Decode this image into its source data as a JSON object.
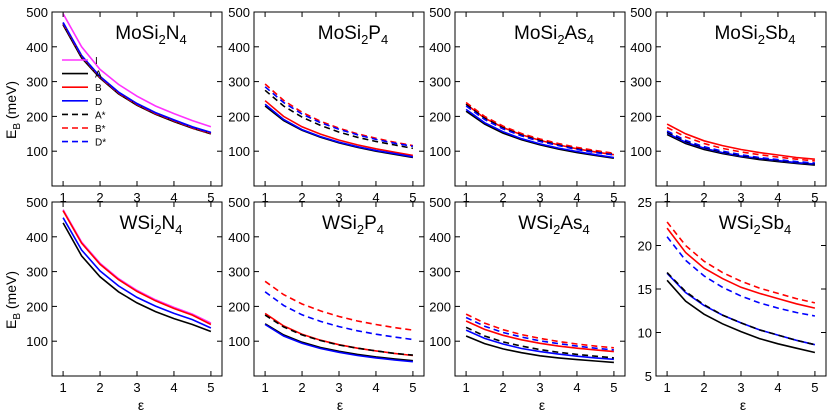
{
  "figure": {
    "xlabel": "ε",
    "ylabel_main": "E",
    "ylabel_sub": "B",
    "ylabel_unit": " (meV)"
  },
  "chart_data": [
    {
      "type": "line",
      "formula": [
        "MoSi",
        "2",
        "N",
        "4"
      ],
      "xlim": [
        0.7,
        5.3
      ],
      "ylim": [
        0,
        500
      ],
      "yticks": [
        100,
        200,
        300,
        400,
        500
      ],
      "xticks": [
        1,
        2,
        3,
        4,
        5
      ],
      "x": [
        1,
        1.5,
        2,
        2.5,
        3,
        3.5,
        4,
        4.5,
        5
      ],
      "series": [
        {
          "name": "I",
          "color": "#ff33ff",
          "dash": false,
          "values": [
            495,
            400,
            335,
            292,
            258,
            230,
            208,
            188,
            170
          ]
        },
        {
          "name": "A",
          "color": "#000000",
          "dash": false,
          "values": [
            463,
            368,
            310,
            265,
            232,
            206,
            185,
            166,
            150
          ]
        },
        {
          "name": "B",
          "color": "#ff0000",
          "dash": false,
          "values": [
            468,
            373,
            313,
            268,
            235,
            209,
            188,
            168,
            152
          ]
        },
        {
          "name": "D",
          "color": "#0000ff",
          "dash": false,
          "values": [
            470,
            375,
            315,
            270,
            237,
            211,
            190,
            170,
            154
          ]
        },
        {
          "name": "A*",
          "color": "#000000",
          "dash": true,
          "values": [
            464,
            369,
            311,
            266,
            233,
            207,
            186,
            167,
            151
          ]
        },
        {
          "name": "B*",
          "color": "#ff0000",
          "dash": true,
          "values": [
            467,
            372,
            312,
            267,
            234,
            208,
            187,
            167,
            151
          ]
        },
        {
          "name": "D*",
          "color": "#0000ff",
          "dash": true,
          "values": [
            469,
            374,
            314,
            269,
            236,
            210,
            189,
            169,
            153
          ]
        }
      ]
    },
    {
      "type": "line",
      "formula": [
        "MoSi",
        "2",
        "P",
        "4"
      ],
      "xlim": [
        0.7,
        5.3
      ],
      "ylim": [
        0,
        500
      ],
      "yticks": [
        100,
        200,
        300,
        400,
        500
      ],
      "xticks": [
        1,
        2,
        3,
        4,
        5
      ],
      "x": [
        1,
        1.5,
        2,
        2.5,
        3,
        3.5,
        4,
        4.5,
        5
      ],
      "series": [
        {
          "name": "A",
          "color": "#000000",
          "dash": false,
          "values": [
            230,
            188,
            160,
            140,
            124,
            111,
            100,
            91,
            82
          ]
        },
        {
          "name": "B",
          "color": "#ff0000",
          "dash": false,
          "values": [
            245,
            200,
            170,
            149,
            132,
            118,
            107,
            97,
            88
          ]
        },
        {
          "name": "D",
          "color": "#0000ff",
          "dash": false,
          "values": [
            235,
            191,
            162,
            142,
            126,
            113,
            102,
            93,
            84
          ]
        },
        {
          "name": "A*",
          "color": "#000000",
          "dash": true,
          "values": [
            275,
            230,
            198,
            174,
            155,
            140,
            128,
            118,
            108
          ]
        },
        {
          "name": "B*",
          "color": "#ff0000",
          "dash": true,
          "values": [
            293,
            246,
            212,
            186,
            166,
            150,
            137,
            126,
            116
          ]
        },
        {
          "name": "D*",
          "color": "#0000ff",
          "dash": true,
          "values": [
            285,
            240,
            207,
            182,
            163,
            147,
            134,
            123,
            114
          ]
        }
      ]
    },
    {
      "type": "line",
      "formula": [
        "MoSi",
        "2",
        "As",
        "4"
      ],
      "xlim": [
        0.7,
        5.3
      ],
      "ylim": [
        0,
        500
      ],
      "yticks": [
        100,
        200,
        300,
        400,
        500
      ],
      "xticks": [
        1,
        2,
        3,
        4,
        5
      ],
      "x": [
        1,
        1.5,
        2,
        2.5,
        3,
        3.5,
        4,
        4.5,
        5
      ],
      "series": [
        {
          "name": "A",
          "color": "#000000",
          "dash": false,
          "values": [
            215,
            178,
            152,
            133,
            118,
            106,
            96,
            88,
            80
          ]
        },
        {
          "name": "B",
          "color": "#ff0000",
          "dash": false,
          "values": [
            235,
            195,
            168,
            147,
            131,
            118,
            107,
            98,
            90
          ]
        },
        {
          "name": "D",
          "color": "#0000ff",
          "dash": false,
          "values": [
            220,
            182,
            156,
            136,
            121,
            109,
            99,
            90,
            82
          ]
        },
        {
          "name": "A*",
          "color": "#000000",
          "dash": true,
          "values": [
            235,
            196,
            169,
            148,
            132,
            119,
            109,
            100,
            92
          ]
        },
        {
          "name": "B*",
          "color": "#ff0000",
          "dash": true,
          "values": [
            240,
            200,
            172,
            151,
            135,
            122,
            111,
            102,
            94
          ]
        },
        {
          "name": "D*",
          "color": "#0000ff",
          "dash": true,
          "values": [
            230,
            191,
            164,
            144,
            128,
            116,
            105,
            96,
            89
          ]
        }
      ]
    },
    {
      "type": "line",
      "formula": [
        "MoSi",
        "2",
        "Sb",
        "4"
      ],
      "xlim": [
        0.7,
        5.3
      ],
      "ylim": [
        0,
        500
      ],
      "yticks": [
        100,
        200,
        300,
        400,
        500
      ],
      "xticks": [
        1,
        2,
        3,
        4,
        5
      ],
      "x": [
        1,
        1.5,
        2,
        2.5,
        3,
        3.5,
        4,
        4.5,
        5
      ],
      "series": [
        {
          "name": "A",
          "color": "#000000",
          "dash": false,
          "values": [
            148,
            122,
            105,
            93,
            84,
            76,
            70,
            65,
            60
          ]
        },
        {
          "name": "B",
          "color": "#ff0000",
          "dash": false,
          "values": [
            178,
            150,
            130,
            116,
            105,
            96,
            89,
            82,
            77
          ]
        },
        {
          "name": "D",
          "color": "#0000ff",
          "dash": false,
          "values": [
            152,
            126,
            109,
            96,
            86,
            79,
            73,
            67,
            63
          ]
        },
        {
          "name": "A*",
          "color": "#000000",
          "dash": true,
          "values": [
            155,
            128,
            111,
            98,
            88,
            80,
            74,
            69,
            64
          ]
        },
        {
          "name": "B*",
          "color": "#ff0000",
          "dash": true,
          "values": [
            168,
            141,
            122,
            108,
            98,
            90,
            83,
            77,
            72
          ]
        },
        {
          "name": "D*",
          "color": "#0000ff",
          "dash": true,
          "values": [
            158,
            131,
            113,
            100,
            90,
            82,
            76,
            70,
            66
          ]
        }
      ]
    },
    {
      "type": "line",
      "formula": [
        "WSi",
        "2",
        "N",
        "4"
      ],
      "xlim": [
        0.7,
        5.3
      ],
      "ylim": [
        0,
        500
      ],
      "yticks": [
        100,
        200,
        300,
        400,
        500
      ],
      "xticks": [
        1,
        2,
        3,
        4,
        5
      ],
      "x": [
        1,
        1.5,
        2,
        2.5,
        3,
        3.5,
        4,
        4.5,
        5
      ],
      "series": [
        {
          "name": "I",
          "color": "#ff33ff",
          "dash": false,
          "values": [
            478,
            385,
            324,
            280,
            246,
            219,
            197,
            178,
            152
          ]
        },
        {
          "name": "A",
          "color": "#000000",
          "dash": false,
          "values": [
            440,
            345,
            285,
            242,
            210,
            185,
            165,
            148,
            128
          ]
        },
        {
          "name": "B",
          "color": "#ff0000",
          "dash": false,
          "values": [
            475,
            382,
            321,
            277,
            243,
            216,
            194,
            175,
            148
          ]
        },
        {
          "name": "D",
          "color": "#0000ff",
          "dash": false,
          "values": [
            455,
            362,
            302,
            259,
            226,
            201,
            180,
            162,
            138
          ]
        }
      ]
    },
    {
      "type": "line",
      "formula": [
        "WSi",
        "2",
        "P",
        "4"
      ],
      "xlim": [
        0.7,
        5.3
      ],
      "ylim": [
        0,
        500
      ],
      "yticks": [
        100,
        200,
        300,
        400,
        500
      ],
      "xticks": [
        1,
        2,
        3,
        4,
        5
      ],
      "x": [
        1,
        1.5,
        2,
        2.5,
        3,
        3.5,
        4,
        4.5,
        5
      ],
      "series": [
        {
          "name": "A",
          "color": "#000000",
          "dash": false,
          "values": [
            150,
            118,
            97,
            82,
            71,
            62,
            55,
            49,
            44
          ]
        },
        {
          "name": "B",
          "color": "#ff0000",
          "dash": false,
          "values": [
            180,
            144,
            120,
            103,
            90,
            80,
            72,
            65,
            59
          ]
        },
        {
          "name": "D",
          "color": "#0000ff",
          "dash": false,
          "values": [
            148,
            115,
            94,
            79,
            68,
            59,
            52,
            46,
            41
          ]
        },
        {
          "name": "A*",
          "color": "#000000",
          "dash": true,
          "values": [
            175,
            141,
            118,
            102,
            89,
            80,
            72,
            65,
            60
          ]
        },
        {
          "name": "B*",
          "color": "#ff0000",
          "dash": true,
          "values": [
            272,
            234,
            207,
            187,
            171,
            158,
            148,
            139,
            132
          ]
        },
        {
          "name": "D*",
          "color": "#0000ff",
          "dash": true,
          "values": [
            242,
            203,
            176,
            157,
            142,
            130,
            120,
            112,
            105
          ]
        }
      ]
    },
    {
      "type": "line",
      "formula": [
        "WSi",
        "2",
        "As",
        "4"
      ],
      "xlim": [
        0.7,
        5.3
      ],
      "ylim": [
        0,
        500
      ],
      "yticks": [
        100,
        200,
        300,
        400,
        500
      ],
      "xticks": [
        1,
        2,
        3,
        4,
        5
      ],
      "x": [
        1,
        1.5,
        2,
        2.5,
        3,
        3.5,
        4,
        4.5,
        5
      ],
      "series": [
        {
          "name": "A",
          "color": "#000000",
          "dash": false,
          "values": [
            115,
            93,
            78,
            67,
            58,
            52,
            47,
            43,
            39
          ]
        },
        {
          "name": "B",
          "color": "#ff0000",
          "dash": false,
          "values": [
            158,
            134,
            117,
            104,
            94,
            86,
            80,
            75,
            70
          ]
        },
        {
          "name": "D",
          "color": "#0000ff",
          "dash": false,
          "values": [
            132,
            108,
            92,
            79,
            70,
            63,
            57,
            52,
            48
          ]
        },
        {
          "name": "A*",
          "color": "#000000",
          "dash": true,
          "values": [
            140,
            115,
            98,
            86,
            76,
            68,
            62,
            57,
            52
          ]
        },
        {
          "name": "B*",
          "color": "#ff0000",
          "dash": true,
          "values": [
            178,
            152,
            133,
            119,
            108,
            99,
            92,
            86,
            81
          ]
        },
        {
          "name": "D*",
          "color": "#0000ff",
          "dash": true,
          "values": [
            168,
            143,
            125,
            112,
            101,
            93,
            86,
            80,
            75
          ]
        }
      ]
    },
    {
      "type": "line",
      "formula": [
        "WSi",
        "2",
        "Sb",
        "4"
      ],
      "xlim": [
        0.7,
        5.3
      ],
      "ylim": [
        5,
        25
      ],
      "yticks": [
        5,
        10,
        15,
        20,
        25
      ],
      "xticks": [
        1,
        2,
        3,
        4,
        5
      ],
      "x": [
        1,
        1.5,
        2,
        2.5,
        3,
        3.5,
        4,
        4.5,
        5
      ],
      "series": [
        {
          "name": "A",
          "color": "#000000",
          "dash": false,
          "values": [
            16.0,
            13.6,
            12.1,
            11.0,
            10.1,
            9.3,
            8.7,
            8.2,
            7.7
          ]
        },
        {
          "name": "B",
          "color": "#ff0000",
          "dash": false,
          "values": [
            22.0,
            19.2,
            17.4,
            16.2,
            15.2,
            14.5,
            13.9,
            13.3,
            12.8
          ]
        },
        {
          "name": "D",
          "color": "#0000ff",
          "dash": false,
          "values": [
            16.8,
            14.6,
            13.1,
            12.0,
            11.1,
            10.3,
            9.7,
            9.1,
            8.6
          ]
        },
        {
          "name": "A*",
          "color": "#000000",
          "dash": true,
          "values": [
            16.9,
            14.7,
            13.2,
            12.0,
            11.1,
            10.3,
            9.7,
            9.1,
            8.6
          ]
        },
        {
          "name": "B*",
          "color": "#ff0000",
          "dash": true,
          "values": [
            22.7,
            20.0,
            18.2,
            16.9,
            15.9,
            15.1,
            14.5,
            13.9,
            13.4
          ]
        },
        {
          "name": "D*",
          "color": "#0000ff",
          "dash": true,
          "values": [
            21.0,
            18.3,
            16.5,
            15.2,
            14.2,
            13.4,
            12.8,
            12.3,
            11.9
          ]
        }
      ]
    }
  ]
}
